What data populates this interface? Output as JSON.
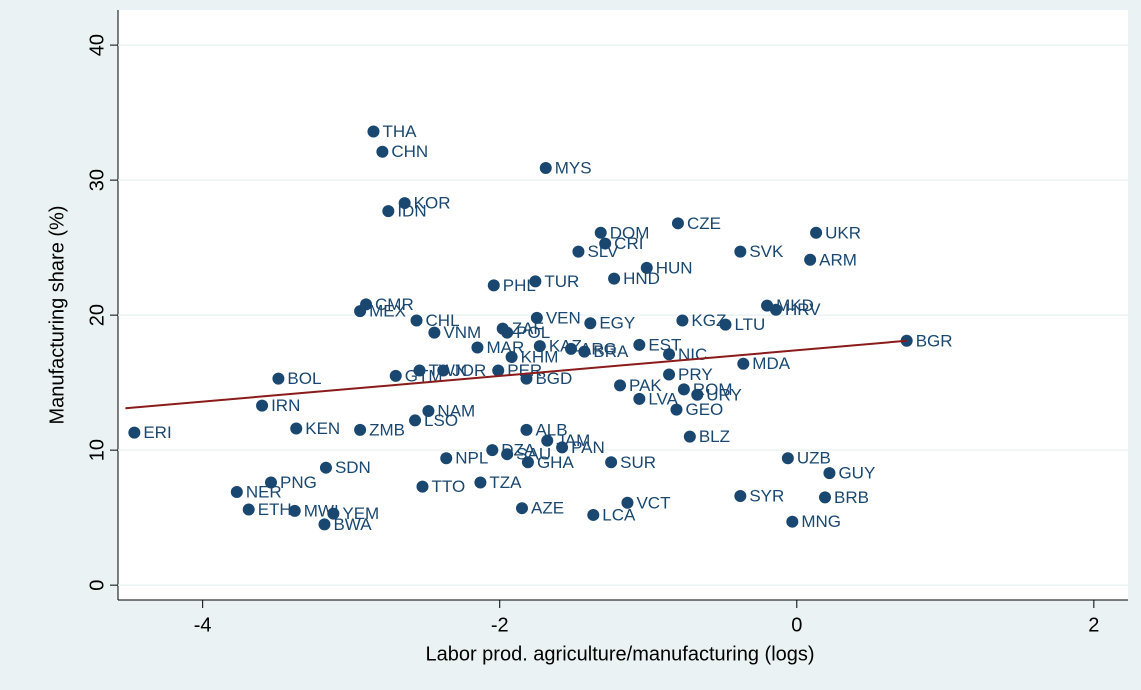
{
  "chart_data": {
    "type": "scatter",
    "x_label": "Labor prod. agriculture/manufacturing (logs)",
    "y_label": "Manufacturing share (%)",
    "xlim": [
      -4.57,
      2.23
    ],
    "ylim": [
      -1.1,
      42.6
    ],
    "xticks": [
      -4,
      -2,
      0,
      2
    ],
    "yticks": [
      0,
      10,
      20,
      30,
      40
    ],
    "grid": true,
    "color": "#1a476f",
    "labels": [
      "THA",
      "CHN",
      "MYS",
      "KOR",
      "IDN",
      "CZE",
      "DOM",
      "UKR",
      "CRI",
      "SLV",
      "SVK",
      "ARM",
      "HUN",
      "HND",
      "TUR",
      "PHL",
      "MKD",
      "HRV",
      "CMR",
      "MEX",
      "VEN",
      "CHL",
      "EGY",
      "KGZ",
      "LTU",
      "ZAF",
      "VNM",
      "POL",
      "BGR",
      "MAR",
      "EST",
      "KAZ",
      "ARG",
      "BRA",
      "NIC",
      "KHM",
      "MDA",
      "PRY",
      "BOL",
      "TWN",
      "PER",
      "GTM",
      "JOR",
      "BGD",
      "PAK",
      "ROM",
      "URY",
      "LVA",
      "IRN",
      "GEO",
      "NAM",
      "LSO",
      "KEN",
      "ZMB",
      "ALB",
      "ERI",
      "BLZ",
      "JAM",
      "DZA",
      "PAN",
      "SAU",
      "NPL",
      "UZB",
      "GHA",
      "SUR",
      "SDN",
      "GUY",
      "PNG",
      "TZA",
      "TTO",
      "NER",
      "SYR",
      "BRB",
      "VCT",
      "AZE",
      "ETH",
      "MWI",
      "YEM",
      "LCA",
      "BWA",
      "MNG"
    ],
    "x": [
      -2.85,
      -2.79,
      -1.69,
      -2.64,
      -2.75,
      -0.8,
      -1.32,
      0.13,
      -1.29,
      -1.47,
      -0.38,
      0.09,
      -1.01,
      -1.23,
      -1.76,
      -2.04,
      -0.2,
      -0.14,
      -2.9,
      -2.94,
      -1.75,
      -2.56,
      -1.39,
      -0.77,
      -0.48,
      -1.98,
      -2.44,
      -1.95,
      0.74,
      -2.15,
      -1.06,
      -1.73,
      -1.52,
      -1.43,
      -0.86,
      -1.92,
      -0.36,
      -0.86,
      -3.49,
      -2.54,
      -2.01,
      -2.7,
      -2.38,
      -1.82,
      -1.19,
      -0.76,
      -0.67,
      -1.06,
      -3.6,
      -0.81,
      -2.48,
      -2.57,
      -3.37,
      -2.94,
      -1.82,
      -4.46,
      -0.72,
      -1.68,
      -2.05,
      -1.58,
      -1.95,
      -2.36,
      -0.06,
      -1.81,
      -1.25,
      -3.17,
      0.22,
      -3.54,
      -2.13,
      -2.52,
      -3.77,
      -0.38,
      0.19,
      -1.14,
      -1.85,
      -3.69,
      -3.38,
      -3.12,
      -1.37,
      -3.18,
      -0.03
    ],
    "y": [
      33.6,
      32.1,
      30.9,
      28.3,
      27.7,
      26.8,
      26.1,
      26.1,
      25.3,
      24.7,
      24.7,
      24.1,
      23.5,
      22.7,
      22.5,
      22.2,
      20.7,
      20.4,
      20.8,
      20.3,
      19.8,
      19.6,
      19.4,
      19.6,
      19.3,
      19.0,
      18.7,
      18.7,
      18.1,
      17.6,
      17.8,
      17.7,
      17.5,
      17.3,
      17.1,
      16.9,
      16.4,
      15.6,
      15.3,
      15.9,
      15.9,
      15.5,
      15.9,
      15.3,
      14.8,
      14.5,
      14.1,
      13.8,
      13.3,
      13.0,
      12.9,
      12.2,
      11.6,
      11.5,
      11.5,
      11.3,
      11.0,
      10.7,
      10.0,
      10.2,
      9.7,
      9.4,
      9.4,
      9.1,
      9.1,
      8.7,
      8.3,
      7.6,
      7.6,
      7.3,
      6.9,
      6.6,
      6.5,
      6.1,
      5.7,
      5.6,
      5.5,
      5.3,
      5.2,
      4.5,
      4.7
    ],
    "fit": {
      "x": [
        -4.52,
        0.74
      ],
      "y": [
        13.1,
        18.1
      ],
      "color": "#8b1a1a"
    }
  }
}
